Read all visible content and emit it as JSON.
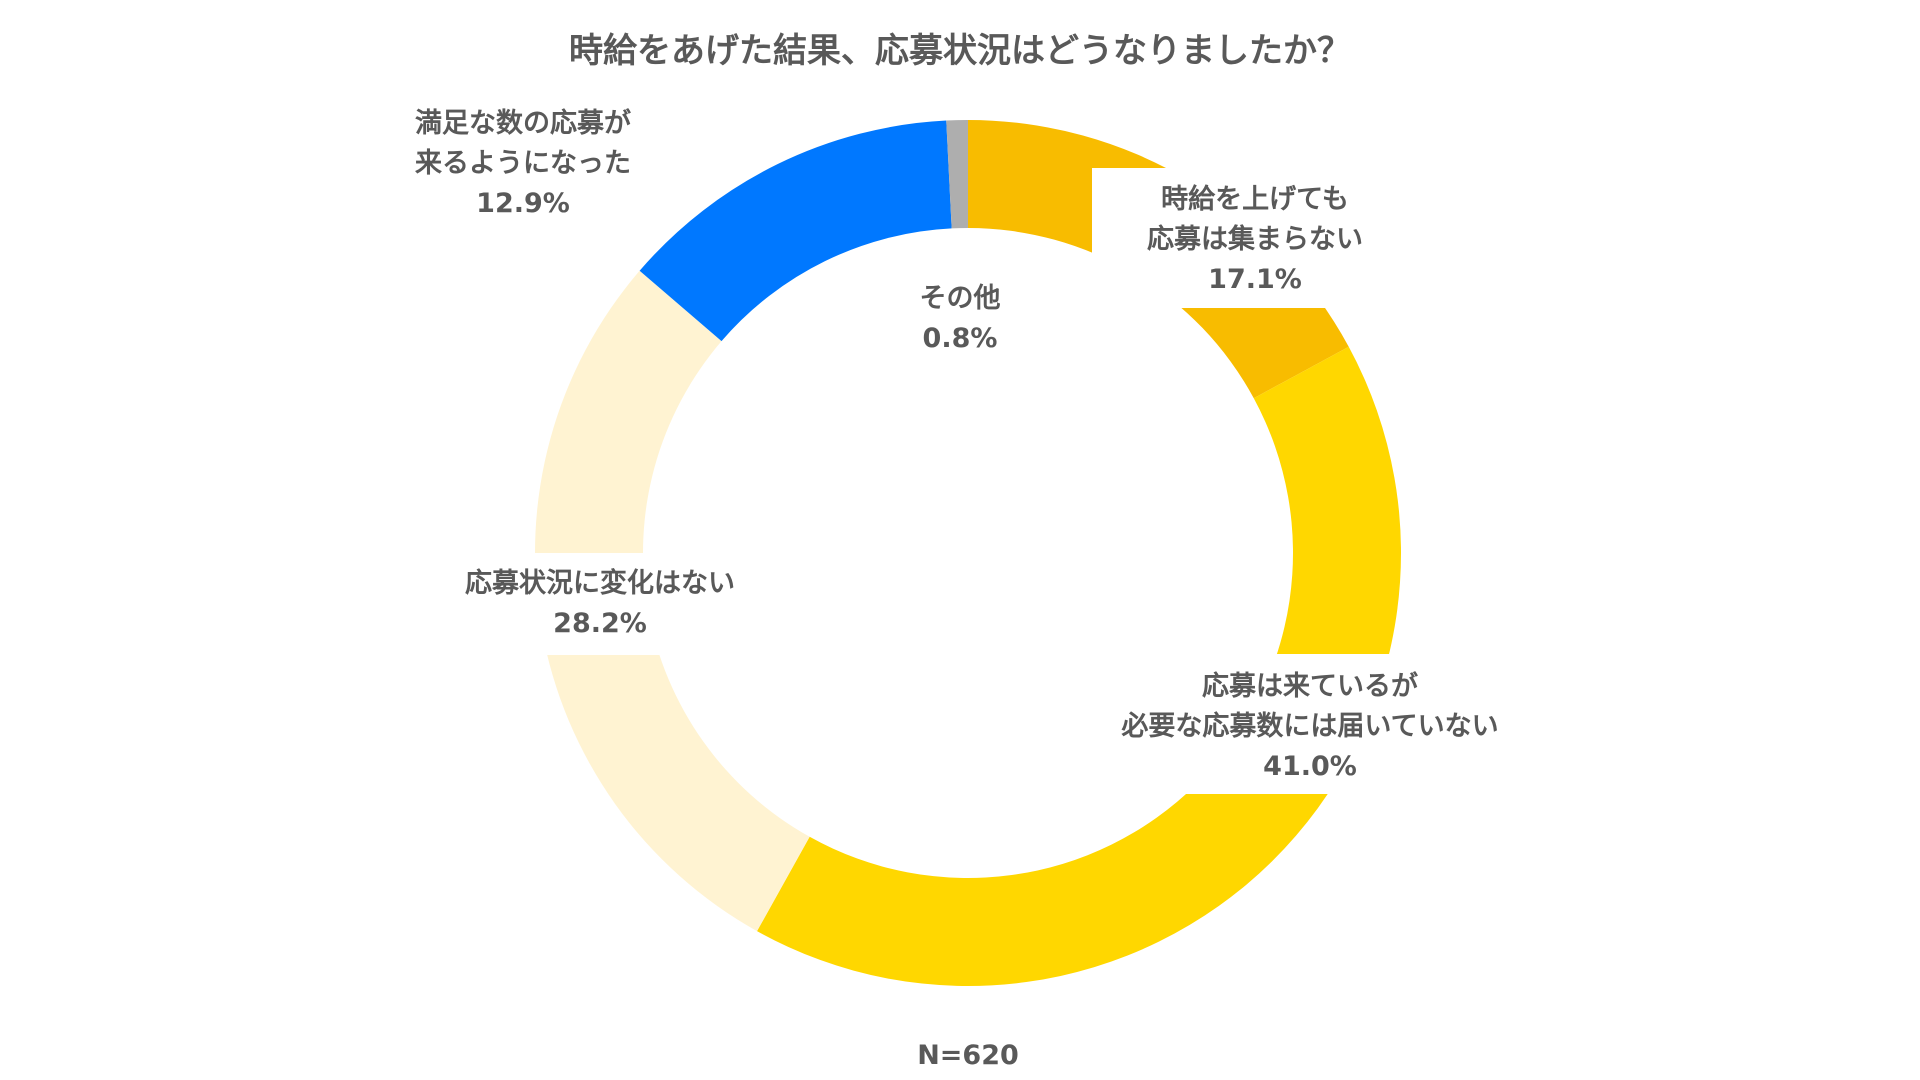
{
  "chart_data": {
    "type": "pie",
    "style": "donut",
    "title": "時給をあげた結果、応募状況はどうなりましたか？",
    "start_angle_deg": 0,
    "direction": "clockwise",
    "categories": [
      [
        "時給を上げても",
        "応募は集まらない"
      ],
      [
        "応募は来ているが",
        "必要な応募数には届いていない"
      ],
      [
        "応募状況に変化はない"
      ],
      [
        "満足な数の応募が",
        "来るようになった"
      ],
      [
        "その他"
      ]
    ],
    "values": [
      17.1,
      41.0,
      28.2,
      12.9,
      0.8
    ],
    "value_labels": [
      "17.1%",
      "41.0%",
      "28.2%",
      "12.9%",
      "0.8%"
    ],
    "colors": [
      "#F8BC00",
      "#FFD700",
      "#FFF3D2",
      "#0078FF",
      "#AEAEAE"
    ],
    "legend": "none",
    "note": "N=620"
  }
}
